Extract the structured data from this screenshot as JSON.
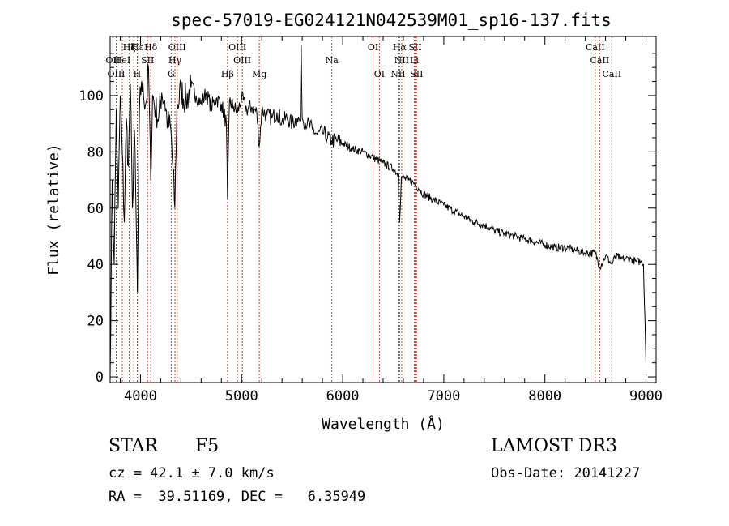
{
  "chart_data": {
    "type": "line",
    "title": "spec-57019-EG024121N042539M01_sp16-137.fits",
    "xlabel": "Wavelength (Å)",
    "ylabel": "Flux (relative)",
    "xlim": [
      3700,
      9100
    ],
    "ylim": [
      -2,
      121
    ],
    "xticks": [
      4000,
      5000,
      6000,
      7000,
      8000,
      9000
    ],
    "yticks": [
      0,
      20,
      40,
      60,
      80,
      100
    ],
    "line_color": "#000000",
    "marker_color": "#c0392b",
    "series": [
      {
        "name": "flux",
        "x": [
          3700,
          3720,
          3740,
          3760,
          3780,
          3800,
          3820,
          3840,
          3860,
          3880,
          3900,
          3920,
          3940,
          3960,
          3970,
          3990,
          4010,
          4030,
          4060,
          4080,
          4101,
          4120,
          4150,
          4180,
          4210,
          4240,
          4270,
          4300,
          4340,
          4360,
          4400,
          4450,
          4500,
          4550,
          4600,
          4650,
          4700,
          4750,
          4800,
          4850,
          4861,
          4880,
          4920,
          4960,
          5000,
          5050,
          5100,
          5150,
          5175,
          5200,
          5250,
          5300,
          5350,
          5400,
          5450,
          5500,
          5550,
          5580,
          5590,
          5600,
          5650,
          5700,
          5750,
          5800,
          5850,
          5890,
          5950,
          6000,
          6100,
          6200,
          6300,
          6400,
          6500,
          6550,
          6563,
          6580,
          6650,
          6700,
          6750,
          6800,
          6900,
          7000,
          7100,
          7200,
          7300,
          7400,
          7500,
          7600,
          7700,
          7800,
          7900,
          8000,
          8100,
          8200,
          8300,
          8400,
          8500,
          8542,
          8600,
          8662,
          8700,
          8750,
          8800,
          8850,
          8900,
          8950,
          8975,
          8990,
          9000
        ],
        "y": [
          0,
          70,
          40,
          95,
          60,
          100,
          80,
          55,
          92,
          75,
          104,
          60,
          88,
          50,
          30,
          95,
          105,
          100,
          98,
          110,
          70,
          100,
          95,
          92,
          101,
          98,
          90,
          88,
          60,
          95,
          102,
          98,
          103,
          100,
          97,
          101,
          96,
          99,
          97,
          90,
          63,
          98,
          96,
          94,
          99,
          95,
          96,
          94,
          82,
          95,
          93,
          92,
          94,
          91,
          92,
          90,
          92,
          91,
          118,
          92,
          90,
          88,
          86,
          87,
          85,
          84,
          84,
          83,
          81,
          80,
          78,
          76,
          74,
          72,
          55,
          71,
          70,
          69,
          67,
          65,
          63,
          61,
          59,
          57,
          55,
          54,
          52,
          51,
          50,
          49,
          48,
          47,
          46,
          46,
          45,
          44,
          44,
          39,
          43,
          40,
          43,
          42,
          42,
          42,
          41,
          41,
          40,
          20,
          5
        ]
      }
    ],
    "line_markers": [
      {
        "name": "Hε",
        "x": 3970,
        "row": 1
      },
      {
        "name": "Hζ",
        "x": 3889,
        "row": 1
      },
      {
        "name": "K",
        "x": 3934,
        "row": 1
      },
      {
        "name": "Hδ",
        "x": 4102,
        "row": 1
      },
      {
        "name": "OIII",
        "x": 4363,
        "row": 1
      },
      {
        "name": "OIII",
        "x": 4959,
        "row": 1
      },
      {
        "name": "OI",
        "x": 6300,
        "row": 1
      },
      {
        "name": "Hα",
        "x": 6563,
        "row": 1
      },
      {
        "name": "SII",
        "x": 6717,
        "row": 1
      },
      {
        "name": "CaII",
        "x": 8498,
        "row": 1
      },
      {
        "name": "OII",
        "x": 3727,
        "row": 2
      },
      {
        "name": "HeI",
        "x": 3820,
        "row": 2
      },
      {
        "name": "SII",
        "x": 4070,
        "row": 2
      },
      {
        "name": "Hγ",
        "x": 4341,
        "row": 2
      },
      {
        "name": "OIII",
        "x": 5007,
        "row": 2
      },
      {
        "name": "Na",
        "x": 5893,
        "row": 2
      },
      {
        "name": "NII",
        "x": 6584,
        "row": 2
      },
      {
        "name": "Li",
        "x": 6708,
        "row": 2
      },
      {
        "name": "CaII",
        "x": 8542,
        "row": 2
      },
      {
        "name": "OIII",
        "x": 3760,
        "row": 3
      },
      {
        "name": "H",
        "x": 3968,
        "row": 3
      },
      {
        "name": "G",
        "x": 4304,
        "row": 3
      },
      {
        "name": "Hβ",
        "x": 4861,
        "row": 3
      },
      {
        "name": "Mg",
        "x": 5175,
        "row": 3
      },
      {
        "name": "OI",
        "x": 6363,
        "row": 3
      },
      {
        "name": "NII",
        "x": 6548,
        "row": 3
      },
      {
        "name": "SII",
        "x": 6731,
        "row": 3
      },
      {
        "name": "CaII",
        "x": 8662,
        "row": 3
      }
    ]
  },
  "info": {
    "object_class": "STAR",
    "subclass": "F5",
    "survey": "LAMOST DR3",
    "redshift": "cz = 42.1 ± 7.0 km/s",
    "obs_date": "Obs-Date: 20141227",
    "coords": "RA =  39.51169, DEC =   6.35949"
  }
}
